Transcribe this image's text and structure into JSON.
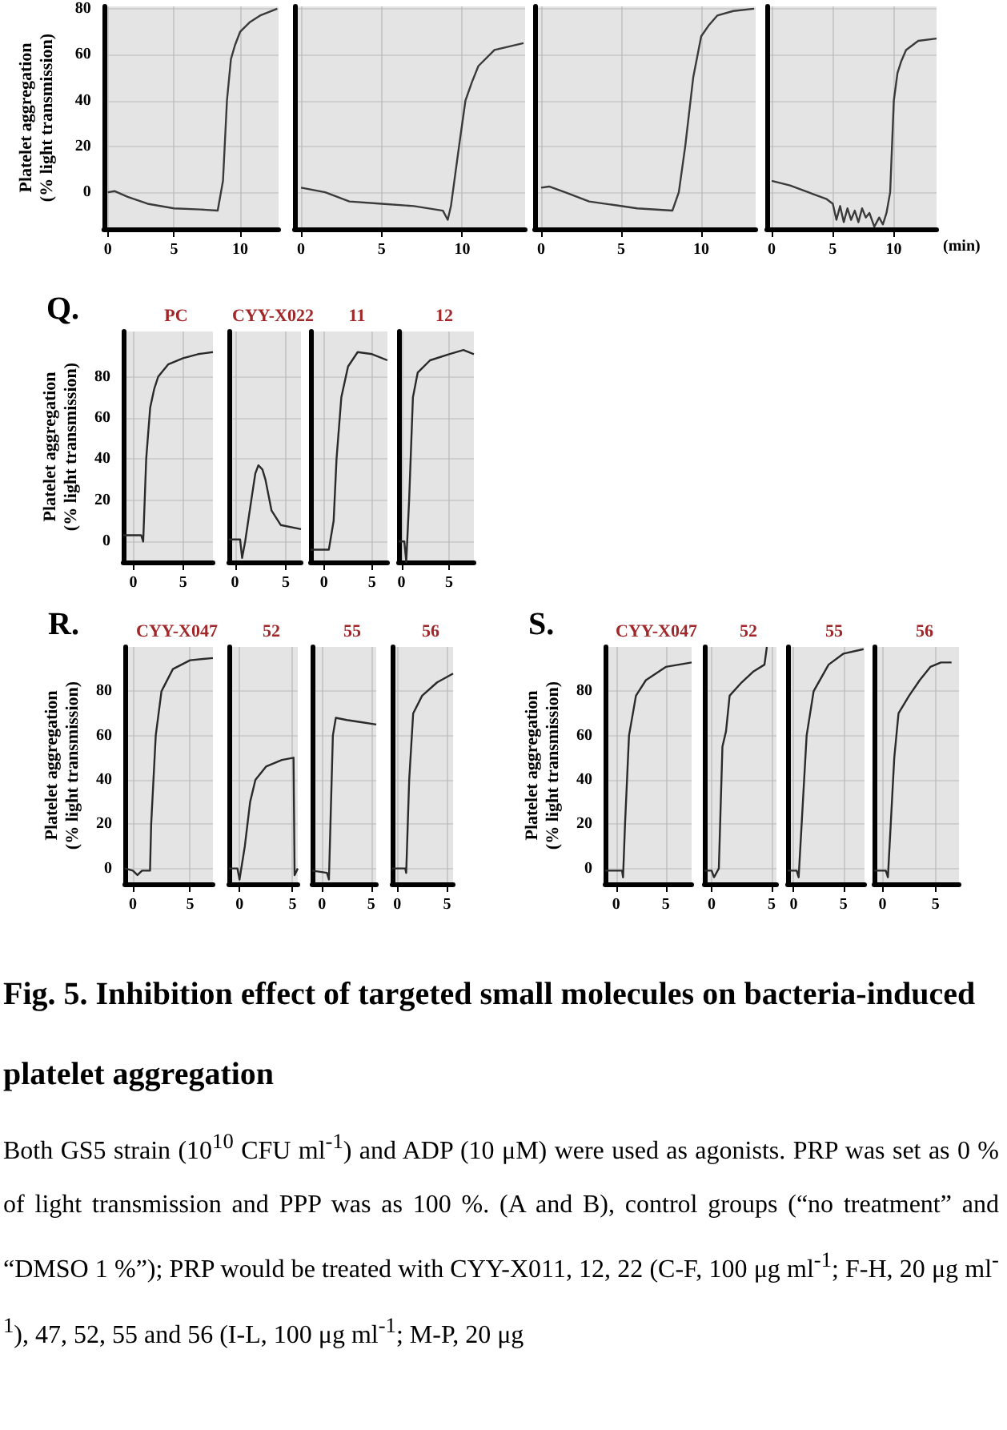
{
  "chart_data": [
    {
      "type": "line",
      "ylabel": "Platelet aggregation\n(% light transmission)",
      "color": "#3a3a3a",
      "grid": true,
      "xlim": [
        -0.3,
        12.9
      ],
      "ylim": [
        -16,
        81
      ],
      "xticks": [
        0,
        5,
        10
      ],
      "yticks": [
        0,
        20,
        40,
        60,
        80
      ],
      "x": [
        0,
        0.5,
        1.5,
        3,
        5,
        7,
        8.3,
        8.7,
        9,
        9.3,
        9.6,
        10,
        10.7,
        11.5,
        12.8
      ],
      "values": [
        0,
        0.5,
        -2,
        -5,
        -7,
        -7.5,
        -8,
        5,
        40,
        58,
        64,
        70,
        74,
        77,
        80
      ]
    },
    {
      "type": "line",
      "tick_labels": "x",
      "color": "#3a3a3a",
      "grid": true,
      "xlim": [
        -0.4,
        13.9
      ],
      "ylim": [
        -16,
        81
      ],
      "xticks": [
        0,
        5,
        10
      ],
      "yticks": [
        0,
        20,
        40,
        60,
        80
      ],
      "x": [
        0,
        1.5,
        3,
        5,
        7,
        8.8,
        9.1,
        9.3,
        9.8,
        10.2,
        10.6,
        11,
        12,
        13.8
      ],
      "values": [
        2,
        0,
        -4,
        -5,
        -6,
        -8,
        -12,
        -6,
        20,
        40,
        48,
        55,
        62,
        65
      ]
    },
    {
      "type": "line",
      "tick_labels": "x",
      "color": "#3a3a3a",
      "grid": true,
      "xlim": [
        -0.4,
        13.4
      ],
      "ylim": [
        -16,
        81
      ],
      "xticks": [
        0,
        5,
        10
      ],
      "yticks": [
        0,
        20,
        40,
        60,
        80
      ],
      "x": [
        0,
        0.5,
        1.5,
        3,
        6,
        8.2,
        8.6,
        9,
        9.5,
        10,
        10.5,
        11,
        12,
        13.3
      ],
      "values": [
        2,
        2.5,
        0,
        -4,
        -7,
        -8,
        0,
        20,
        50,
        68,
        73,
        77,
        79,
        80
      ]
    },
    {
      "type": "line",
      "tick_labels": "x",
      "xlabel": "(min)",
      "color": "#3a3a3a",
      "grid": true,
      "xlim": [
        -0.4,
        13.5
      ],
      "ylim": [
        -16,
        81
      ],
      "xticks": [
        0,
        5,
        10
      ],
      "yticks": [
        0,
        20,
        40,
        60,
        80
      ],
      "x": [
        0,
        1.5,
        3,
        4.5,
        5,
        5.3,
        5.6,
        5.9,
        6.2,
        6.5,
        6.8,
        7.1,
        7.4,
        7.7,
        8,
        8.4,
        8.8,
        9.1,
        9.4,
        9.7,
        10,
        10.3,
        10.6,
        11,
        12,
        13.5
      ],
      "values": [
        5,
        3,
        0,
        -3,
        -5,
        -12,
        -6,
        -13,
        -7,
        -12,
        -8,
        -13,
        -7,
        -11,
        -9,
        -15,
        -11,
        -14,
        -9,
        0,
        40,
        52,
        57,
        62,
        66,
        67
      ]
    },
    {
      "type": "line",
      "title": "PC",
      "ylabel": "Platelet aggregation\n(% light transmission)",
      "annotations": [
        "Q."
      ],
      "color": "#2a2a2a",
      "grid": true,
      "xlim": [
        -1,
        8
      ],
      "ylim": [
        -10,
        102
      ],
      "xticks": [
        0,
        5
      ],
      "yticks": [
        0,
        20,
        40,
        60,
        80
      ],
      "x": [
        -1,
        0,
        0.8,
        1,
        1.3,
        1.7,
        2.1,
        2.5,
        3.5,
        5,
        6.5,
        8
      ],
      "values": [
        3,
        3,
        3,
        0,
        40,
        65,
        74,
        80,
        86,
        89,
        91,
        92
      ]
    },
    {
      "type": "line",
      "title": "CYY-X022",
      "tick_labels": "x",
      "color": "#2a2a2a",
      "grid": true,
      "xlim": [
        -0.6,
        6.5
      ],
      "ylim": [
        -10,
        102
      ],
      "xticks": [
        0,
        5
      ],
      "yticks": [
        0,
        20,
        40,
        60,
        80
      ],
      "x": [
        -0.6,
        0.5,
        0.7,
        1,
        1.6,
        2,
        2.3,
        2.7,
        3,
        3.6,
        4.5,
        6.5
      ],
      "values": [
        1,
        1,
        -8,
        0,
        20,
        33,
        37,
        35,
        30,
        15,
        8,
        6
      ]
    },
    {
      "type": "line",
      "title": "11",
      "tick_labels": "x",
      "color": "#2a2a2a",
      "grid": true,
      "xlim": [
        -1.4,
        6.6
      ],
      "ylim": [
        -10,
        102
      ],
      "xticks": [
        0,
        5
      ],
      "yticks": [
        0,
        20,
        40,
        60,
        80
      ],
      "x": [
        -1.4,
        0.5,
        1,
        1.3,
        1.8,
        2.5,
        3.5,
        5,
        6.6
      ],
      "values": [
        -4,
        -4,
        10,
        40,
        70,
        85,
        92,
        91,
        88
      ]
    },
    {
      "type": "line",
      "title": "12",
      "tick_labels": "x",
      "color": "#2a2a2a",
      "grid": true,
      "xlim": [
        -0.3,
        7.6
      ],
      "ylim": [
        -10,
        102
      ],
      "xticks": [
        0,
        5
      ],
      "yticks": [
        0,
        20,
        40,
        60,
        80
      ],
      "x": [
        -0.3,
        0.3,
        0.5,
        0.8,
        1.2,
        1.7,
        3,
        5,
        6.5,
        7.6
      ],
      "values": [
        0,
        0,
        -10,
        20,
        70,
        82,
        88,
        91,
        93,
        91
      ]
    },
    {
      "type": "line",
      "title": "CYY-X047",
      "ylabel": "Platelet aggregation\n(% light transmission)",
      "annotations": [
        "R."
      ],
      "color": "#2a2a2a",
      "grid": true,
      "xlim": [
        -0.7,
        7
      ],
      "ylim": [
        -7,
        100
      ],
      "xticks": [
        0,
        5
      ],
      "yticks": [
        0,
        20,
        40,
        60,
        80
      ],
      "x": [
        -0.7,
        0,
        0.4,
        0.8,
        1.5,
        1.6,
        2,
        2.5,
        3.5,
        5,
        7
      ],
      "values": [
        0,
        -1,
        -3,
        -1,
        -1,
        20,
        60,
        80,
        90,
        94,
        95
      ]
    },
    {
      "type": "line",
      "title": "52",
      "tick_labels": "x",
      "color": "#2a2a2a",
      "grid": true,
      "xlim": [
        -1,
        5.5
      ],
      "ylim": [
        -7,
        100
      ],
      "xticks": [
        0,
        5
      ],
      "yticks": [
        0,
        20,
        40,
        60,
        80
      ],
      "x": [
        -1,
        -0.2,
        0,
        0.5,
        1,
        1.5,
        2.5,
        4,
        5.1,
        5.2,
        5.5
      ],
      "values": [
        0,
        0,
        -5,
        10,
        30,
        40,
        46,
        49,
        50,
        -3,
        0
      ]
    },
    {
      "type": "line",
      "title": "55",
      "tick_labels": "x",
      "color": "#2a2a2a",
      "grid": true,
      "xlim": [
        -1,
        5.5
      ],
      "ylim": [
        -7,
        100
      ],
      "xticks": [
        0,
        5
      ],
      "yticks": [
        0,
        20,
        40,
        60,
        80
      ],
      "x": [
        -1,
        0.5,
        0.7,
        1.1,
        1.4,
        2.5,
        4,
        5.5
      ],
      "values": [
        -1,
        -2,
        -5,
        60,
        68,
        67,
        66,
        65
      ]
    },
    {
      "type": "line",
      "title": "56",
      "tick_labels": "x",
      "color": "#2a2a2a",
      "grid": true,
      "xlim": [
        -0.5,
        5.6
      ],
      "ylim": [
        -7,
        100
      ],
      "xticks": [
        0,
        5
      ],
      "yticks": [
        0,
        20,
        40,
        60,
        80
      ],
      "x": [
        -0.5,
        0.8,
        0.9,
        1.2,
        1.6,
        2.5,
        4,
        5.6
      ],
      "values": [
        0,
        0,
        -2,
        40,
        70,
        78,
        84,
        88
      ]
    },
    {
      "type": "line",
      "title": "CYY-X047",
      "ylabel": "Platelet aggregation\n(% light transmission)",
      "annotations": [
        "S."
      ],
      "color": "#2a2a2a",
      "grid": true,
      "xlim": [
        -1.1,
        7.6
      ],
      "ylim": [
        -7,
        100
      ],
      "xticks": [
        0,
        5
      ],
      "yticks": [
        0,
        20,
        40,
        60,
        80
      ],
      "x": [
        -1.1,
        0.6,
        0.7,
        0.9,
        1.3,
        2,
        3,
        5,
        7.6
      ],
      "values": [
        -1,
        -1,
        -4,
        20,
        60,
        78,
        85,
        91,
        93
      ]
    },
    {
      "type": "line",
      "title": "52",
      "tick_labels": "x",
      "color": "#2a2a2a",
      "grid": true,
      "xlim": [
        -0.6,
        5.4
      ],
      "ylim": [
        -7,
        100
      ],
      "xticks": [
        0,
        5
      ],
      "yticks": [
        0,
        20,
        40,
        60,
        80
      ],
      "x": [
        -0.6,
        0,
        0.2,
        0.6,
        0.9,
        1.2,
        1.5,
        2.5,
        3.5,
        4.4,
        4.6
      ],
      "values": [
        -1,
        -1,
        -4,
        0,
        55,
        62,
        78,
        84,
        89,
        92,
        100
      ]
    },
    {
      "type": "line",
      "title": "55",
      "tick_labels": "x",
      "color": "#2a2a2a",
      "grid": true,
      "xlim": [
        -0.6,
        7.1
      ],
      "ylim": [
        -7,
        100
      ],
      "xticks": [
        0,
        5
      ],
      "yticks": [
        0,
        20,
        40,
        60,
        80
      ],
      "x": [
        -0.6,
        0.3,
        0.5,
        0.8,
        1.3,
        2,
        3.5,
        5,
        7
      ],
      "values": [
        -1,
        -1,
        -4,
        20,
        60,
        80,
        92,
        97,
        99
      ]
    },
    {
      "type": "line",
      "title": "56",
      "tick_labels": "x",
      "color": "#2a2a2a",
      "grid": true,
      "xlim": [
        -0.8,
        7.2
      ],
      "ylim": [
        -7,
        100
      ],
      "xticks": [
        0,
        5
      ],
      "yticks": [
        0,
        20,
        40,
        60,
        80
      ],
      "x": [
        -0.8,
        0.3,
        0.5,
        1.1,
        1.5,
        2.5,
        3.5,
        4.5,
        5.5,
        6.5
      ],
      "values": [
        -1,
        -1,
        -4,
        50,
        70,
        78,
        85,
        91,
        93,
        93
      ]
    },
    {
      "type": "other",
      "title": "Fig. 5. Inhibition effect of targeted small molecules on bacteria-induced platelet aggregation",
      "annotations": [
        "Both GS5 strain (10$^{10}$ CFU ml$^{-1}$) and ADP (10 μM) were used as agonists. PRP was set as 0 % of light transmission and PPP was as 100 %. (A and B), control groups (“no treatment” and “DMSO 1 %”); PRP would be treated with CYY-X011, 12, 22 (C-F, 100 μg ml$^{-1}$; F-H, 20 μg ml$^{-1}$), 47, 52, 55 and 56 (I-L, 100 μg ml$^{-1}$; M-P, 20 μg"
      ]
    }
  ]
}
